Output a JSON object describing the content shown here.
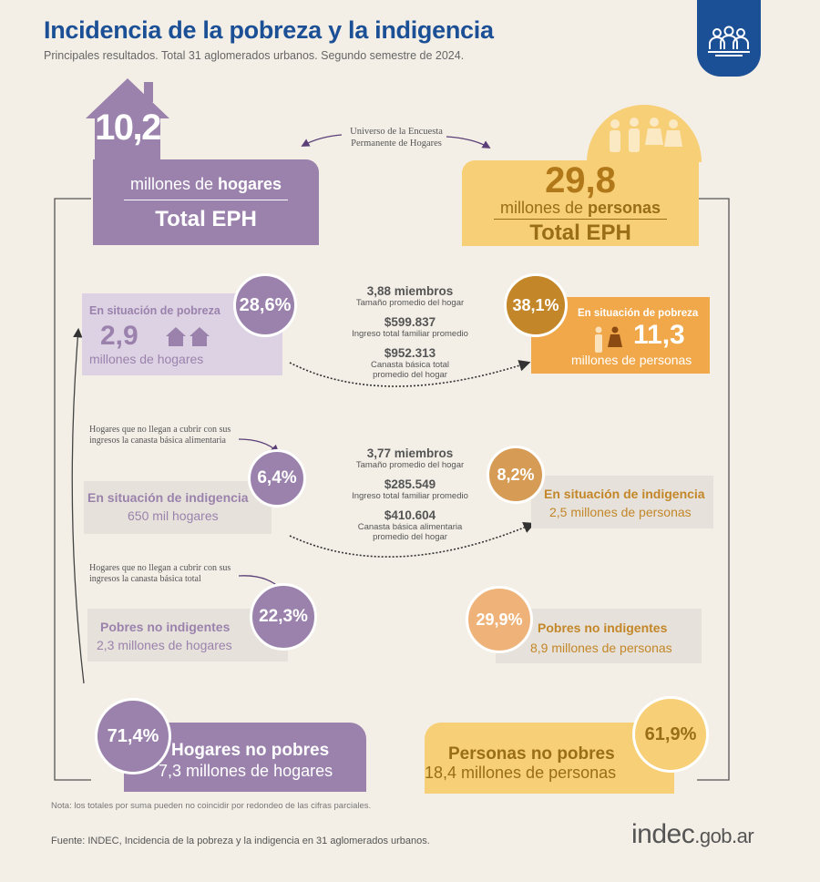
{
  "header": {
    "title": "Incidencia de la pobreza y la indigencia",
    "subtitle": "Principales resultados. Total 31 aglomerados urbanos. Segundo semestre de 2024."
  },
  "icons": {
    "badge": "people-group-icon",
    "house": "house-icon",
    "people": "people-icon"
  },
  "colors": {
    "purple": "#9b82ad",
    "yellow": "#f7cf77",
    "blue": "#1b4f96",
    "brown": "#c38628"
  },
  "universe_note": [
    "Universo de la Encuesta",
    "Permanente de Hogares"
  ],
  "households": {
    "total_value": "10,2",
    "total_label_prefix": "millones de ",
    "total_label_bold": "hogares",
    "total_label": "Total EPH",
    "poverty_label": "En situación de pobreza",
    "poverty_pct": "28,6%",
    "poverty_value": "2,9",
    "poverty_unit": "millones de hogares",
    "note_indigence": "Hogares que no llegan a cubrir con sus ingresos la canasta básica alimentaria",
    "indigence_pct": "6,4%",
    "indigence_label": "En situación de indigencia",
    "indigence_value": "650 mil hogares",
    "note_nonindigent": "Hogares que no llegan a cubrir con sus ingresos la canasta básica total",
    "nonindigent_pct": "22,3%",
    "nonindigent_label": "Pobres no indigentes",
    "nonindigent_value": "2,3 millones de hogares",
    "nonpoor_pct": "71,4%",
    "nonpoor_label": "Hogares no pobres",
    "nonpoor_value": "7,3 millones de hogares"
  },
  "persons": {
    "total_value": "29,8",
    "total_label_prefix": "millones de ",
    "total_label_bold": "personas",
    "total_label": "Total EPH",
    "poverty_pct": "38,1%",
    "poverty_label": "En situación de pobreza",
    "poverty_value": "11,3",
    "poverty_unit": "millones de personas",
    "indigence_pct": "8,2%",
    "indigence_label": "En situación de indigencia",
    "indigence_value": "2,5 millones de personas",
    "nonindigent_pct": "29,9%",
    "nonindigent_label": "Pobres no indigentes",
    "nonindigent_value": "8,9 millones de personas",
    "nonpoor_pct": "61,9%",
    "nonpoor_label": "Personas no pobres",
    "nonpoor_value": "18,4 millones de personas"
  },
  "poverty_stats": [
    {
      "value": "3,88 miembros",
      "label": "Tamaño promedio del hogar"
    },
    {
      "value": "$599.837",
      "label": "Ingreso total familiar promedio"
    },
    {
      "value": "$952.313",
      "label": "Canasta básica total promedio del hogar"
    }
  ],
  "indigence_stats": [
    {
      "value": "3,77 miembros",
      "label": "Tamaño promedio del hogar"
    },
    {
      "value": "$285.549",
      "label": "Ingreso total familiar promedio"
    },
    {
      "value": "$410.604",
      "label": "Canasta básica alimentaria promedio del hogar"
    }
  ],
  "footer": {
    "note": "Nota: los totales por suma pueden no coincidir por redondeo de las cifras parciales.",
    "source": "Fuente: INDEC, Incidencia de la pobreza y la indigencia en 31 aglomerados urbanos.",
    "logo_bold": "indec",
    "logo_suffix": ".gob.ar"
  }
}
